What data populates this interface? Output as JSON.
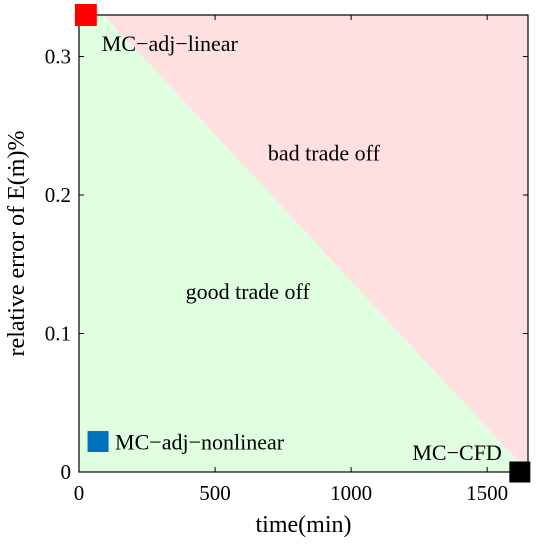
{
  "chart_data": {
    "type": "scatter",
    "title": "",
    "xlabel": "time(min)",
    "ylabel": "relative error of E(ṁ)%",
    "xlim": [
      0,
      1650
    ],
    "ylim": [
      0,
      0.33
    ],
    "xticks": [
      0,
      500,
      1000,
      1500
    ],
    "yticks": [
      0,
      0.1,
      0.2,
      0.3
    ],
    "xtick_labels": [
      "0",
      "500",
      "1000",
      "1500"
    ],
    "ytick_labels": [
      "0",
      "0.1",
      "0.2",
      "0.3"
    ],
    "grid": false,
    "regions": [
      {
        "name": "bad trade off",
        "color": "#ffe0e0"
      },
      {
        "name": "good trade off",
        "color": "#e0ffe0"
      }
    ],
    "annotations": [
      {
        "text": "bad trade off",
        "x": 900,
        "y": 0.225
      },
      {
        "text": "good trade off",
        "x": 620,
        "y": 0.125
      }
    ],
    "points": [
      {
        "label": "MC−adj−linear",
        "x": 25,
        "y": 0.33,
        "color": "#ff0000"
      },
      {
        "label": "MC−adj−nonlinear",
        "x": 70,
        "y": 0.022,
        "color": "#0072bd"
      },
      {
        "label": "MC−CFD",
        "x": 1620,
        "y": 0.0,
        "color": "#000000"
      }
    ]
  }
}
